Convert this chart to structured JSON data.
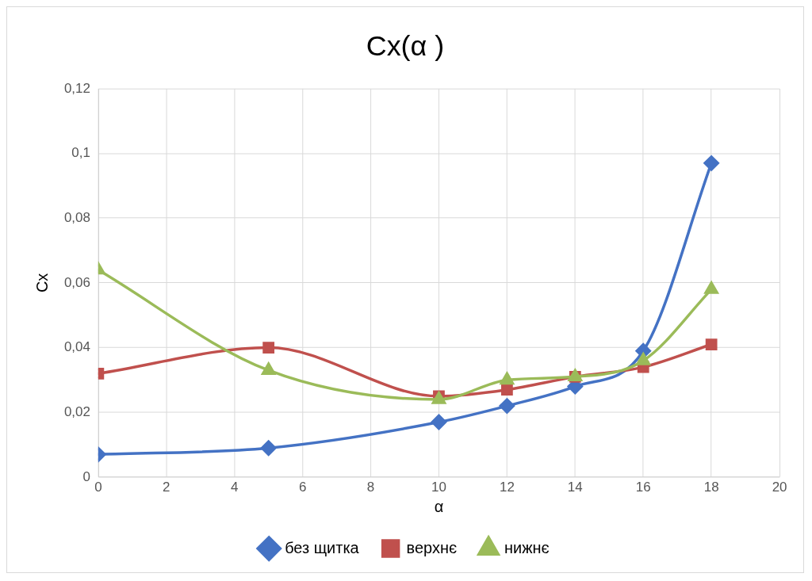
{
  "chart_data": {
    "type": "line",
    "title": "Cx(α )",
    "xlabel": "α",
    "ylabel": "Cx",
    "x": [
      0,
      5,
      10,
      12,
      14,
      16,
      18
    ],
    "series": [
      {
        "name": "без щитка",
        "color": "#4472c4",
        "marker": "diamond",
        "values": [
          0.007,
          0.009,
          0.017,
          0.022,
          0.028,
          0.039,
          0.097
        ]
      },
      {
        "name": "верхнє",
        "color": "#c0504d",
        "marker": "square",
        "values": [
          0.032,
          0.04,
          0.025,
          0.027,
          0.031,
          0.034,
          0.041
        ]
      },
      {
        "name": "нижнє",
        "color": "#9bbb59",
        "marker": "triangle",
        "values": [
          0.064,
          0.033,
          0.024,
          0.03,
          0.031,
          0.036,
          0.058
        ]
      }
    ],
    "xlim": [
      0,
      20
    ],
    "xticks": [
      0,
      2,
      4,
      6,
      8,
      10,
      12,
      14,
      16,
      18,
      20
    ],
    "ylim": [
      0,
      0.12
    ],
    "yticks": [
      0,
      {
        "value": 0.02,
        "label": "0,02"
      },
      {
        "value": 0.04,
        "label": "0,04"
      },
      {
        "value": 0.06,
        "label": "0,06"
      },
      {
        "value": 0.08,
        "label": "0,08"
      },
      {
        "value": 0.1,
        "label": "0,1"
      },
      {
        "value": 0.12,
        "label": "0,12"
      }
    ],
    "grid": true,
    "legend": "bottom",
    "line_style": "solid"
  }
}
